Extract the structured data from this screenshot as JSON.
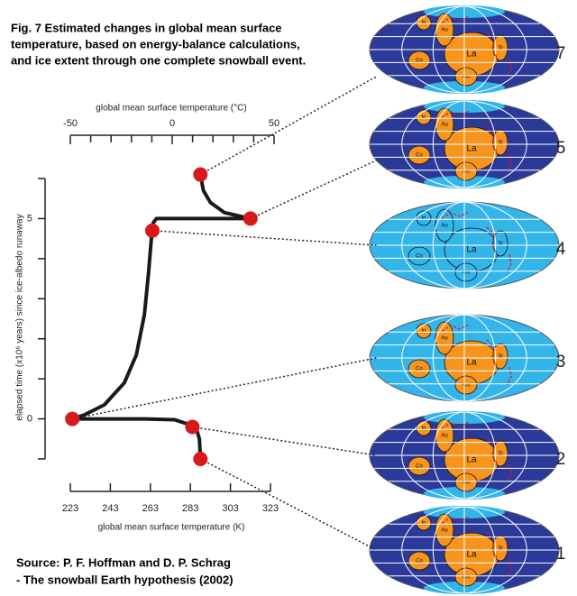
{
  "chart_data": {
    "type": "line",
    "title_lines": [
      "Fig. 7 Estimated changes in global mean surface",
      "temperature, based on energy-balance calculations,",
      "and ice extent through one complete snowball event."
    ],
    "x_label": "global mean surface temperature (K)",
    "x2_label": "global mean surface temperature (°C)",
    "y_label": "elapsed time (x10⁶ years) since ice-albedo runaway",
    "xlim": [
      223,
      323
    ],
    "xticks": [
      223,
      243,
      263,
      283,
      303,
      323
    ],
    "x2lim": [
      -50,
      50
    ],
    "x2ticks": [
      -50,
      0,
      50
    ],
    "x2minorticks": [
      -40,
      -30,
      -20,
      -10,
      10,
      20,
      30,
      40
    ],
    "ylim": [
      -1,
      6
    ],
    "yticks": [
      0,
      5
    ],
    "yminorticks": [
      -1,
      1,
      2,
      3,
      4,
      6
    ],
    "curve": {
      "color": "#1a1a1a",
      "x": [
        288,
        287.5,
        286,
        283,
        275,
        260,
        224,
        230,
        240,
        250,
        256,
        260,
        262,
        263.5,
        264.5,
        266,
        313,
        300,
        293,
        289.5,
        288
      ],
      "y": [
        -1,
        -0.5,
        -0.25,
        -0.15,
        -0.02,
        0,
        0,
        0.1,
        0.35,
        0.9,
        1.6,
        2.6,
        3.6,
        4.5,
        4.9,
        5,
        5,
        5.15,
        5.4,
        5.7,
        6.1
      ]
    },
    "points": {
      "color": "#d7191c",
      "x": [
        288,
        284,
        224,
        264,
        313,
        288
      ],
      "y": [
        -1,
        -0.2,
        0,
        4.7,
        5,
        6.1
      ],
      "labels": [
        "1",
        "2",
        "3",
        "4",
        "5",
        "7"
      ],
      "globe_ocean_colors": [
        "#2b3a99",
        "#2b3a99",
        "#33b5ea",
        "#33b5ea",
        "#2b3a99",
        "#2b3a99"
      ]
    },
    "continents": [
      "La",
      "Co",
      "Am",
      "Si",
      "Au",
      "In"
    ],
    "source_lines": [
      "Source: P. F. Hoffman and D. P. Schrag",
      "- The snowball Earth hypothesis (2002)"
    ]
  }
}
